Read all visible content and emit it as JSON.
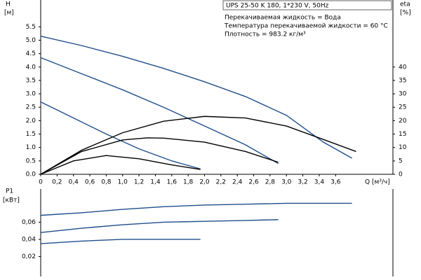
{
  "chart_data": [
    {
      "type": "line",
      "title": "UPS 25-50 K 180, 1*230 V, 50Hz",
      "annotations": [
        "Перекачиваемая жидкость = Вода",
        "Температура перекачиваемой жидкости = 60 °C",
        "Плотность = 983.2 кг/м³"
      ],
      "y_label": "H",
      "y_unit": "[м]",
      "y2_label": "eta",
      "y2_unit": "[%]",
      "x_label": "Q [м³/ч]",
      "xlim": [
        0,
        4.3
      ],
      "ylim": [
        0,
        6.5
      ],
      "y2lim": [
        0,
        65
      ],
      "xticks": [
        0,
        {
          "value": 0.2,
          "label": "0,2"
        },
        {
          "value": 0.4,
          "label": "0,4"
        },
        {
          "value": 0.6,
          "label": "0,6"
        },
        {
          "value": 0.8,
          "label": "0,8"
        },
        {
          "value": 1.0,
          "label": "1,0"
        },
        {
          "value": 1.2,
          "label": "1,2"
        },
        {
          "value": 1.4,
          "label": "1,4"
        },
        {
          "value": 1.6,
          "label": "1,6"
        },
        {
          "value": 1.8,
          "label": "1,8"
        },
        {
          "value": 2.0,
          "label": "2,0"
        },
        {
          "value": 2.2,
          "label": "2,2"
        },
        {
          "value": 2.4,
          "label": "2,4"
        },
        {
          "value": 2.6,
          "label": "2,6"
        },
        {
          "value": 2.8,
          "label": "2,8"
        },
        {
          "value": 3.0,
          "label": "3,0"
        },
        {
          "value": 3.2,
          "label": "3,2"
        },
        {
          "value": 3.4,
          "label": "3,4"
        },
        {
          "value": 3.6,
          "label": "3,6"
        }
      ],
      "yticks": [
        {
          "value": 0,
          "label": "0.0"
        },
        {
          "value": 0.5,
          "label": "0.5"
        },
        {
          "value": 1,
          "label": "1.0"
        },
        {
          "value": 1.5,
          "label": "1.5"
        },
        {
          "value": 2,
          "label": "2.0"
        },
        {
          "value": 2.5,
          "label": "2.5"
        },
        {
          "value": 3,
          "label": "3.0"
        },
        {
          "value": 3.5,
          "label": "3.5"
        },
        {
          "value": 4,
          "label": "4.0"
        },
        {
          "value": 4.5,
          "label": "4.5"
        },
        {
          "value": 5,
          "label": "5.0"
        },
        {
          "value": 5.5,
          "label": "5.5"
        }
      ],
      "y2ticks": [
        0,
        5,
        10,
        15,
        20,
        25,
        30,
        35,
        40
      ],
      "series": [
        {
          "color": "#1f4e8c",
          "x": [
            0,
            0.5,
            1,
            1.5,
            2,
            2.5,
            3,
            3.45,
            3.8
          ],
          "values": [
            5.15,
            4.8,
            4.4,
            3.95,
            3.45,
            2.9,
            2.2,
            1.2,
            0.6
          ]
        },
        {
          "color": "#1f4e8c",
          "x": [
            0,
            0.5,
            1,
            1.5,
            2,
            2.5,
            2.9
          ],
          "values": [
            4.35,
            3.75,
            3.15,
            2.5,
            1.8,
            1.1,
            0.4
          ]
        },
        {
          "color": "#1f4e8c",
          "x": [
            0,
            0.4,
            0.8,
            1.2,
            1.6,
            1.95
          ],
          "values": [
            2.7,
            2.1,
            1.5,
            0.95,
            0.5,
            0.2
          ]
        },
        {
          "color": "#000000",
          "axis": "y2",
          "x": [
            0,
            0.5,
            1,
            1.5,
            2,
            2.5,
            3,
            3.45,
            3.85
          ],
          "values": [
            0,
            9,
            15.5,
            19.8,
            21.6,
            21,
            18,
            13,
            8.5
          ]
        },
        {
          "color": "#000000",
          "axis": "y2",
          "x": [
            0,
            0.5,
            1,
            1.3,
            1.5,
            2,
            2.5,
            2.9
          ],
          "values": [
            0,
            8.5,
            12.8,
            13.6,
            13.5,
            12,
            8.5,
            4.5
          ]
        },
        {
          "color": "#000000",
          "axis": "y2",
          "x": [
            0,
            0.4,
            0.8,
            1.2,
            1.6,
            1.95
          ],
          "values": [
            0,
            5,
            7,
            5.8,
            3.5,
            1.8
          ]
        }
      ]
    },
    {
      "type": "line",
      "y_label": "P1",
      "y_unit": "[кВт]",
      "xlim": [
        0,
        4.3
      ],
      "ylim": [
        0,
        0.084
      ],
      "yticks": [
        {
          "value": 0.02,
          "label": "0,02"
        },
        {
          "value": 0.04,
          "label": "0,04"
        },
        {
          "value": 0.06,
          "label": "0,06"
        }
      ],
      "series": [
        {
          "color": "#1f4e8c",
          "x": [
            0,
            0.5,
            1,
            1.5,
            2,
            2.5,
            3,
            3.5,
            3.8
          ],
          "values": [
            0.068,
            0.071,
            0.075,
            0.078,
            0.08,
            0.081,
            0.082,
            0.082,
            0.082
          ]
        },
        {
          "color": "#1f4e8c",
          "x": [
            0,
            0.5,
            1,
            1.5,
            2,
            2.5,
            2.9
          ],
          "values": [
            0.048,
            0.053,
            0.057,
            0.06,
            0.061,
            0.062,
            0.063
          ]
        },
        {
          "color": "#1f4e8c",
          "x": [
            0,
            0.5,
            1,
            1.5,
            1.95
          ],
          "values": [
            0.035,
            0.038,
            0.04,
            0.04,
            0.04
          ]
        }
      ]
    }
  ]
}
